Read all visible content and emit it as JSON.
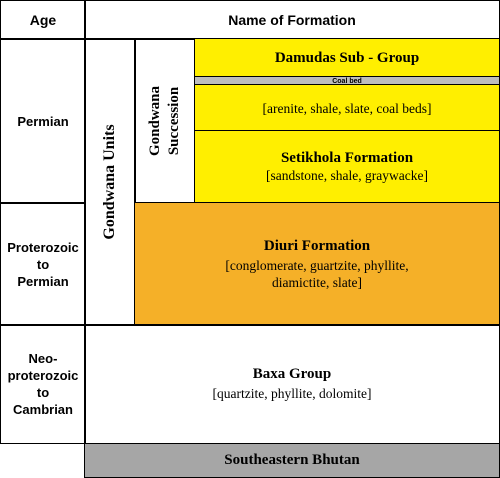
{
  "header": {
    "age_label": "Age",
    "formation_label": "Name of Formation"
  },
  "ages": [
    {
      "label": "Permian"
    },
    {
      "line1": "Proterozoic",
      "line2": "to",
      "line3": "Permian"
    },
    {
      "line1": "Neo-",
      "line2": "proterozoic",
      "line3": "to",
      "line4": "Cambrian"
    }
  ],
  "units": {
    "gondwana_units": "Gondwana Units",
    "gondwana_succession_line1": "Gondwana",
    "gondwana_succession_line2": "Succession"
  },
  "formations": {
    "damudas": {
      "title": "Damudas Sub - Group",
      "coal_bed": "Coal bed",
      "description": "[arenite, shale, slate, coal beds]"
    },
    "setikhola": {
      "title": "Setikhola Formation",
      "description": "[sandstone, shale, graywacke]"
    },
    "diuri": {
      "title": "Diuri Formation",
      "description_line1": "[conglomerate, guartzite, phyllite,",
      "description_line2": "diamictite, slate]"
    },
    "baxa": {
      "title": "Baxa Group",
      "description": "[quartzite, phyllite, dolomite]"
    }
  },
  "footer": {
    "region": "Southeastern Bhutan"
  },
  "colors": {
    "yellow": "#ffef00",
    "orange": "#f5b028",
    "grey": "#a6a6a6",
    "coal_bed": "#bdbdbd"
  }
}
